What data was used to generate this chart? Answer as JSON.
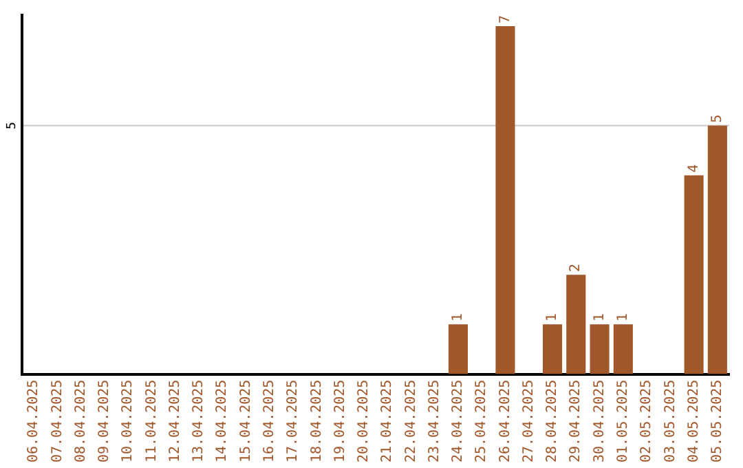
{
  "chart_data": {
    "type": "bar",
    "categories": [
      "06.04.2025",
      "07.04.2025",
      "08.04.2025",
      "09.04.2025",
      "10.04.2025",
      "11.04.2025",
      "12.04.2025",
      "13.04.2025",
      "14.04.2025",
      "15.04.2025",
      "16.04.2025",
      "17.04.2025",
      "18.04.2025",
      "19.04.2025",
      "20.04.2025",
      "21.04.2025",
      "22.04.2025",
      "23.04.2025",
      "24.04.2025",
      "25.04.2025",
      "26.04.2025",
      "27.04.2025",
      "28.04.2025",
      "29.04.2025",
      "30.04.2025",
      "01.05.2025",
      "02.05.2025",
      "03.05.2025",
      "04.05.2025",
      "05.05.2025"
    ],
    "values": [
      null,
      null,
      null,
      null,
      null,
      null,
      null,
      null,
      null,
      null,
      null,
      null,
      null,
      null,
      null,
      null,
      null,
      null,
      1,
      null,
      7,
      null,
      1,
      2,
      1,
      1,
      null,
      null,
      4,
      5
    ],
    "ylim": [
      0,
      7.25
    ],
    "value_labels": [
      null,
      null,
      null,
      null,
      null,
      null,
      null,
      null,
      null,
      null,
      null,
      null,
      null,
      null,
      null,
      null,
      null,
      null,
      "1",
      null,
      "7",
      null,
      "1",
      "2",
      "1",
      "1",
      null,
      null,
      "4",
      "5"
    ],
    "color": "#a0572a",
    "ref_lines": [
      {
        "axis": "y",
        "value": 5,
        "label": "5",
        "color": "#c8c8c8"
      }
    ],
    "legend": false
  }
}
